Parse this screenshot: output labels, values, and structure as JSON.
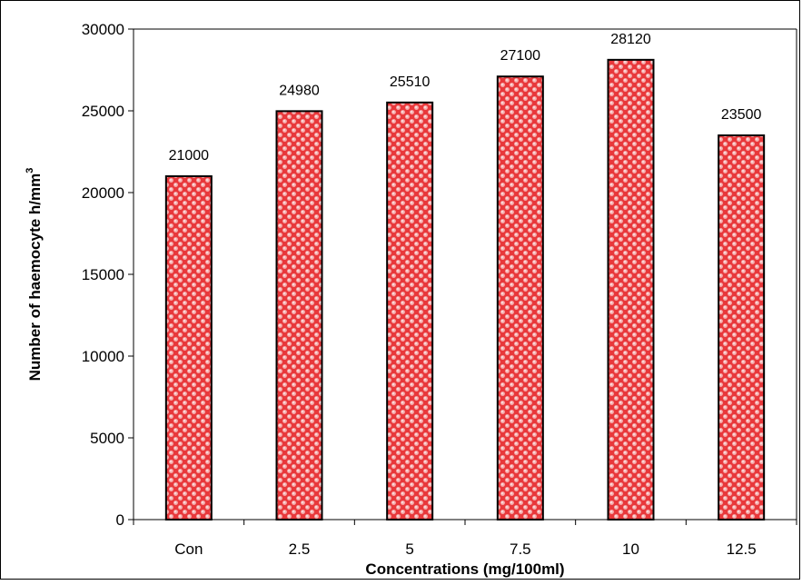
{
  "chart_data": {
    "type": "bar",
    "title": "",
    "xlabel": "Concentrations (mg/100ml)",
    "ylabel_main": "Number of haemocyte h/mm",
    "ylabel_sup": "3",
    "categories": [
      "Con",
      "2.5",
      "5",
      "7.5",
      "10",
      "12.5"
    ],
    "values": [
      21000,
      24980,
      25510,
      27100,
      28120,
      23500
    ],
    "data_labels": [
      "21000",
      "24980",
      "25510",
      "27100",
      "28120",
      "23500"
    ],
    "ylim": [
      0,
      30000
    ],
    "yticks": [
      "0",
      "5000",
      "10000",
      "15000",
      "20000",
      "25000",
      "30000"
    ],
    "grid": false,
    "legend": "none",
    "bar_color": "#e8383b",
    "dot_color": "#f6b3b3",
    "bar_edge": "#000000"
  }
}
